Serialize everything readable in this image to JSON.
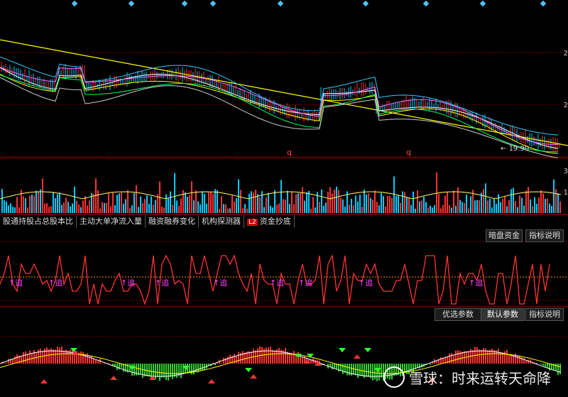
{
  "tabs": [
    {
      "label": "股通持股占总股本比",
      "badge": ""
    },
    {
      "label": "主动大单净流入量",
      "badge": ""
    },
    {
      "label": "融资融券变化",
      "badge": ""
    },
    {
      "label": "机构探测器",
      "badge": ""
    },
    {
      "label": "资金抄底",
      "badge": "L2"
    }
  ],
  "indicator1_buttons": {
    "a": "暗盘资金",
    "b": "指标说明"
  },
  "indicator2_buttons": {
    "a": "优选参数",
    "b": "默认参数",
    "c": "指标说明"
  },
  "price_chart": {
    "low_label": "19.90",
    "q_marks": [
      "q",
      "q"
    ]
  },
  "right_axis": {
    "p1": "2",
    "p2": "2",
    "v1": "3",
    "v2": "1"
  },
  "signals": {
    "up_label": "↑追"
  },
  "watermark": {
    "text": "雪球：时来运转天命降"
  },
  "colors": {
    "up": "#ff3333",
    "down": "#00ccff",
    "ma_yellow": "#ffff00",
    "ma_white": "#ffffff"
  }
}
